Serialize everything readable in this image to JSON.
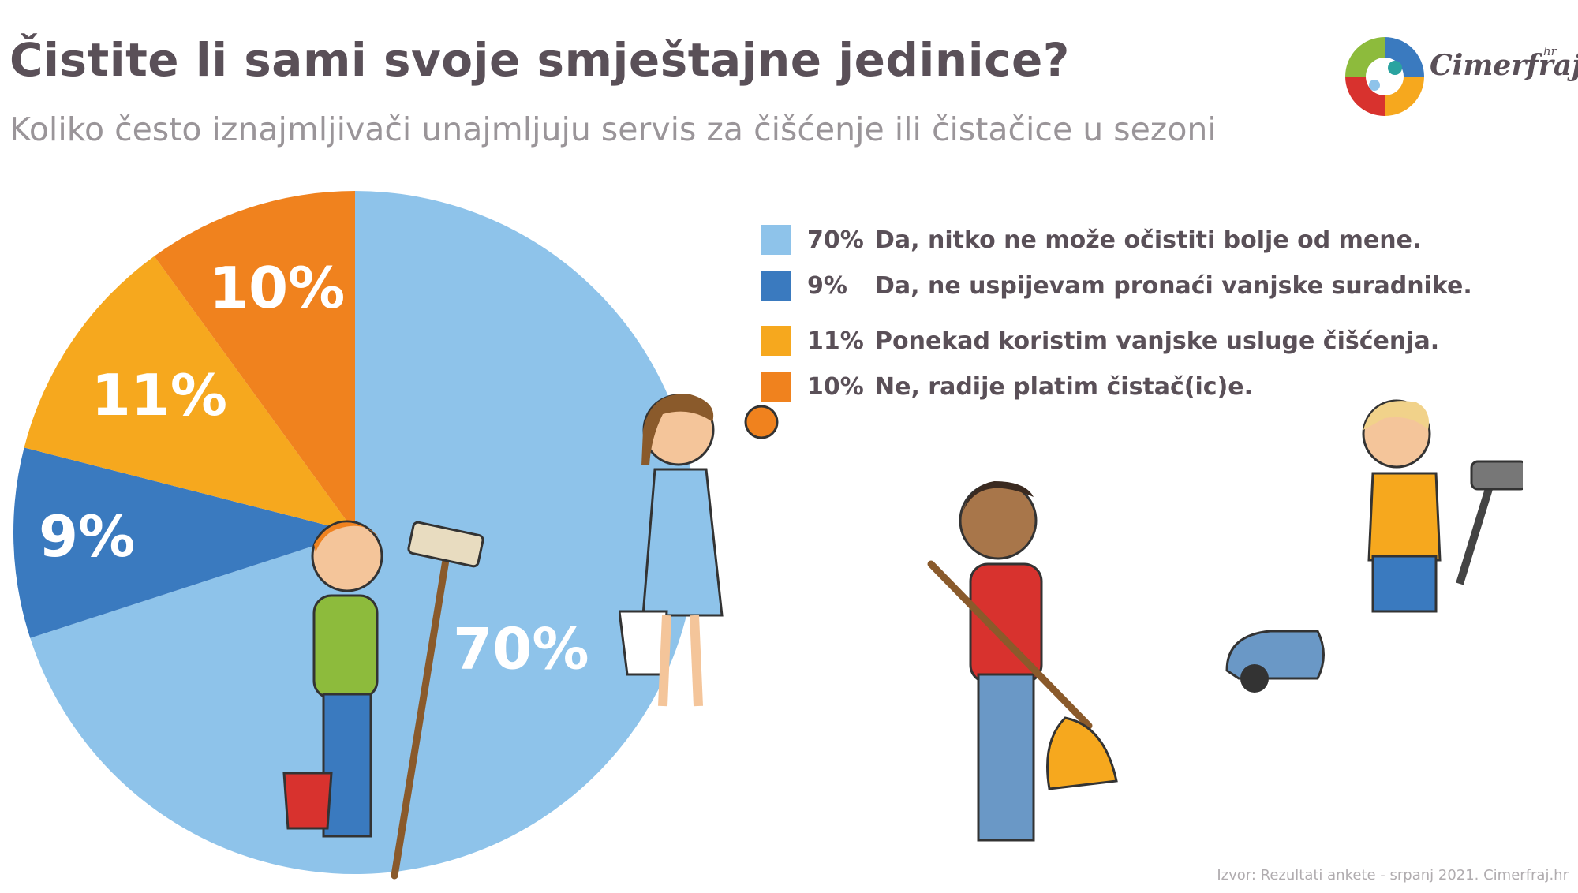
{
  "title": "Čistite li sami svoje smještajne jedinice?",
  "subtitle": "Koliko često iznajmljivači unajmljuju servis za čišćenje ili čistačice u sezoni",
  "logo": {
    "name": "Cimerfraj",
    "suffix": "hr"
  },
  "source": "Izvor: Rezultati ankete - srpanj 2021. Cimerfraj.hr",
  "chart_data": {
    "type": "pie",
    "slices": [
      {
        "pct": "70%",
        "value": 70,
        "label": "Da, nitko ne može očistiti bolje od mene.",
        "color": "#8ec3ea"
      },
      {
        "pct": "9%",
        "value": 9,
        "label": "Da, ne uspijevam pronaći vanjske suradnike.",
        "color": "#3a7abf"
      },
      {
        "pct": "11%",
        "value": 11,
        "label": "Ponekad koristim vanjske usluge čišćenja.",
        "color": "#f6a81e"
      },
      {
        "pct": "10%",
        "value": 10,
        "label": "Ne, radije platim čistač(ic)e.",
        "color": "#f0821e"
      }
    ],
    "legend_position": "right"
  }
}
